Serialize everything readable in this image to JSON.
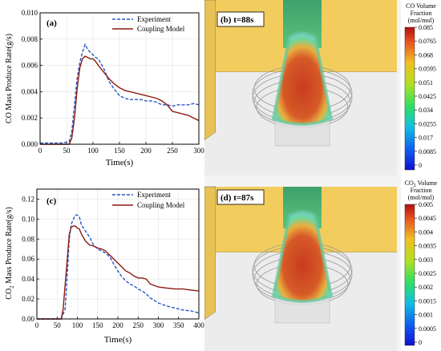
{
  "colors": {
    "experiment": "#2a57c6",
    "coupling": "#8b1a10",
    "wall": "#f2cd5e",
    "floor": "#d8d8d8"
  },
  "chart_data": [
    {
      "type": "line",
      "panel": "(a)",
      "xlabel": "Time(s)",
      "ylabel": "CO Mass Produce Rate(g/s)",
      "xlim": [
        0,
        300
      ],
      "ylim": [
        0,
        0.01
      ],
      "xticks": [
        "0",
        "50",
        "100",
        "150",
        "200",
        "250",
        "300"
      ],
      "yticks": [
        "0.000",
        "0.002",
        "0.004",
        "0.006",
        "0.008",
        "0.010"
      ],
      "legend_position": "top-right",
      "series": [
        {
          "name": "Experiment",
          "style": "dashed",
          "x": [
            0,
            20,
            40,
            55,
            60,
            65,
            70,
            75,
            80,
            85,
            90,
            95,
            100,
            105,
            110,
            120,
            130,
            140,
            150,
            160,
            170,
            180,
            190,
            200,
            210,
            220,
            230,
            240,
            250,
            260,
            270,
            280,
            290,
            300
          ],
          "y": [
            0.0001,
            0.0001,
            0.0001,
            0.0002,
            0.001,
            0.003,
            0.005,
            0.0062,
            0.007,
            0.0076,
            0.0072,
            0.007,
            0.0068,
            0.0066,
            0.0065,
            0.0058,
            0.0048,
            0.0042,
            0.0037,
            0.0035,
            0.0034,
            0.0034,
            0.0034,
            0.0033,
            0.0033,
            0.0032,
            0.003,
            0.003,
            0.0029,
            0.003,
            0.003,
            0.003,
            0.0031,
            0.003
          ]
        },
        {
          "name": "Coupling Model",
          "style": "solid",
          "x": [
            0,
            20,
            40,
            55,
            60,
            65,
            70,
            75,
            80,
            85,
            90,
            95,
            100,
            105,
            110,
            120,
            130,
            140,
            150,
            160,
            170,
            180,
            190,
            200,
            210,
            220,
            230,
            240,
            250,
            260,
            270,
            280,
            290,
            300
          ],
          "y": [
            0.0,
            0.0,
            0.0,
            0.0,
            0.0005,
            0.002,
            0.0042,
            0.0058,
            0.0065,
            0.0067,
            0.0066,
            0.0065,
            0.0065,
            0.0063,
            0.006,
            0.0055,
            0.005,
            0.0046,
            0.0043,
            0.0041,
            0.004,
            0.0039,
            0.0038,
            0.0037,
            0.0036,
            0.0035,
            0.0033,
            0.003,
            0.0025,
            0.0024,
            0.0023,
            0.0022,
            0.002,
            0.0018
          ]
        }
      ]
    },
    {
      "type": "line",
      "panel": "(c)",
      "xlabel": "Time(s)",
      "ylabel": "CO2 Mass Produce Rate(g/s)",
      "ylabel_parts": {
        "before": "CO",
        "sub": "2",
        "after": " Mass Produce Rate(g/s)"
      },
      "xlim": [
        0,
        400
      ],
      "ylim": [
        0,
        0.13
      ],
      "xticks": [
        "0",
        "50",
        "100",
        "150",
        "200",
        "250",
        "300",
        "350",
        "400"
      ],
      "yticks": [
        "0.00",
        "0.02",
        "0.04",
        "0.06",
        "0.08",
        "0.10",
        "0.12"
      ],
      "legend_position": "top-right",
      "series": [
        {
          "name": "Experiment",
          "style": "dashed",
          "x": [
            0,
            40,
            60,
            70,
            75,
            80,
            85,
            90,
            95,
            100,
            105,
            110,
            120,
            130,
            140,
            150,
            160,
            170,
            180,
            190,
            200,
            210,
            220,
            230,
            240,
            250,
            260,
            270,
            280,
            300,
            320,
            340,
            360,
            380,
            400
          ],
          "y": [
            0.0,
            0.0,
            0.0,
            0.01,
            0.045,
            0.08,
            0.095,
            0.1,
            0.104,
            0.104,
            0.102,
            0.094,
            0.088,
            0.082,
            0.074,
            0.07,
            0.068,
            0.066,
            0.062,
            0.055,
            0.048,
            0.042,
            0.038,
            0.035,
            0.033,
            0.03,
            0.028,
            0.025,
            0.021,
            0.016,
            0.013,
            0.011,
            0.009,
            0.008,
            0.006
          ]
        },
        {
          "name": "Coupling Model",
          "style": "solid",
          "x": [
            0,
            40,
            60,
            65,
            70,
            75,
            80,
            85,
            90,
            95,
            100,
            105,
            110,
            120,
            130,
            140,
            150,
            160,
            170,
            180,
            190,
            200,
            210,
            220,
            230,
            240,
            250,
            260,
            270,
            280,
            300,
            320,
            340,
            360,
            380,
            400
          ],
          "y": [
            0.0,
            0.0,
            0.0,
            0.01,
            0.035,
            0.06,
            0.085,
            0.092,
            0.093,
            0.093,
            0.091,
            0.09,
            0.085,
            0.078,
            0.074,
            0.073,
            0.071,
            0.07,
            0.068,
            0.064,
            0.06,
            0.056,
            0.052,
            0.048,
            0.046,
            0.043,
            0.041,
            0.041,
            0.04,
            0.035,
            0.032,
            0.031,
            0.03,
            0.03,
            0.029,
            0.028
          ]
        }
      ]
    },
    {
      "type": "heatmap",
      "panel": "(b) t=88s",
      "colorbar_title": [
        "CO Volume",
        "Fraction",
        "(mol/mol)"
      ],
      "colorbar_ticks": [
        "0.085",
        "0.0765",
        "0.068",
        "0.0595",
        "0.051",
        "0.0425",
        "0.034",
        "0.0255",
        "0.017",
        "0.0085",
        "0"
      ]
    },
    {
      "type": "heatmap",
      "panel": "(d) t=87s",
      "colorbar_title": [
        "CO2 Volume",
        "Fraction",
        "(mol/mol)"
      ],
      "colorbar_title_parts": {
        "before": "CO",
        "sub": "2",
        "after": " Volume"
      },
      "colorbar_ticks": [
        "0.005",
        "0.0045",
        "0.004",
        "0.0035",
        "0.003",
        "0.0025",
        "0.002",
        "0.0015",
        "0.001",
        "0.0005",
        "0"
      ]
    }
  ]
}
